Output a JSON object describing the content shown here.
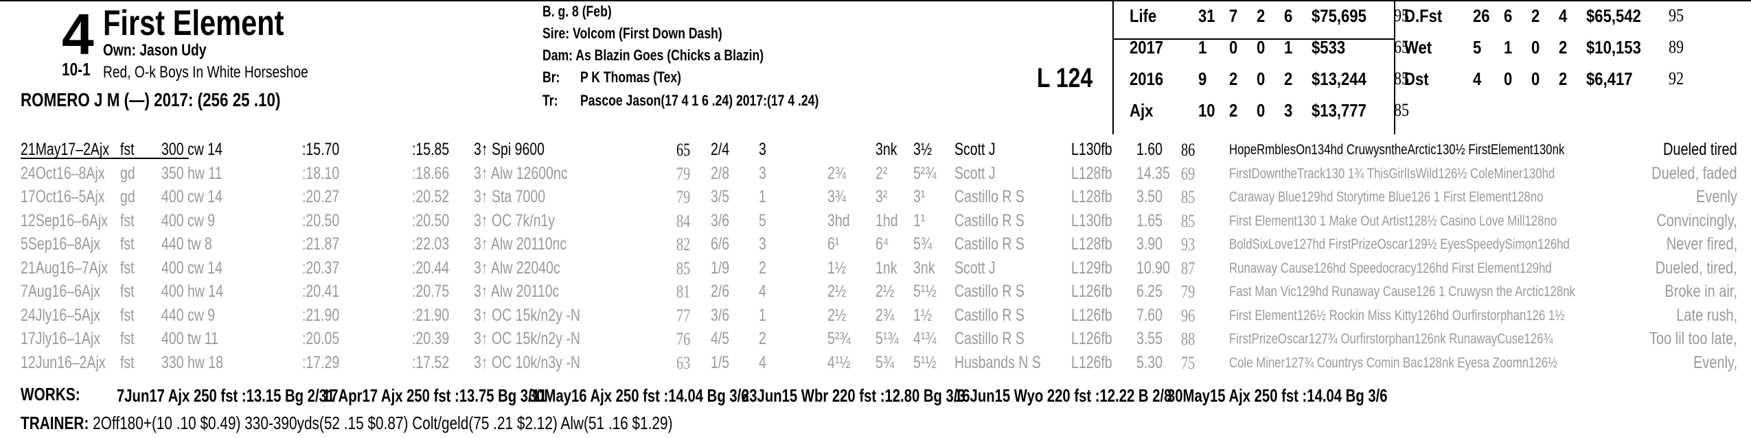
{
  "header": {
    "program_number": "4",
    "horse_name": "First Element",
    "owner": "Own: Jason Udy",
    "odds": "10-1",
    "silks": "Red, O-k Boys In White Horseshoe",
    "jockey": "ROMERO J M (—) 2017: (256 25 .10)",
    "breed": "B. g. 8 (Feb)",
    "sire": "Sire: Volcom (First Down Dash)",
    "dam": "Dam: As Blazin Goes (Chicks a Blazin)",
    "breeder_label": "Br:",
    "breeder": "P K Thomas (Tex)",
    "trainer_label": "Tr:",
    "trainer": "Pascoe Jason(17 4 1 6 .24)  2017:(17 4 .24)",
    "weight": "L 124"
  },
  "stats_left": [
    {
      "label": "Life",
      "starts": "31",
      "w": "7",
      "p": "2",
      "s": "6",
      "earn": "$75,695",
      "speed": "95"
    },
    {
      "label": "2017",
      "starts": "1",
      "w": "0",
      "p": "0",
      "s": "1",
      "earn": "$533",
      "speed": "65"
    },
    {
      "label": "2016",
      "starts": "9",
      "w": "2",
      "p": "0",
      "s": "2",
      "earn": "$13,244",
      "speed": "85"
    },
    {
      "label": "Ajx",
      "starts": "10",
      "w": "2",
      "p": "0",
      "s": "3",
      "earn": "$13,777",
      "speed": "85"
    }
  ],
  "stats_right": [
    {
      "label": "D.Fst",
      "starts": "26",
      "w": "6",
      "p": "2",
      "s": "4",
      "earn": "$65,542",
      "speed": "95"
    },
    {
      "label": "Wet",
      "starts": "5",
      "w": "1",
      "p": "0",
      "s": "2",
      "earn": "$10,153",
      "speed": "89"
    },
    {
      "label": "Dst",
      "starts": "4",
      "w": "0",
      "p": "0",
      "s": "2",
      "earn": "$6,417",
      "speed": "92"
    }
  ],
  "races": [
    {
      "date": "21May17–2Ajx",
      "cond": "fst",
      "dist": "300 cw 14",
      "f1": ":15.70",
      "f2": ":15.85",
      "type": "3↑ Spi 9600",
      "sr": "65",
      "pp": "2/4",
      "st": "3",
      "c1": "",
      "c2": "3nk",
      "fin": "3½",
      "jockey": "Scott J",
      "wt": "L130fb",
      "odds": "1.60",
      "spd": "86",
      "comment": "HopeRmblesOn134hd CruwysntheArctic130½ FirstElement130nk",
      "result": "Dueled tired"
    },
    {
      "date": "24Oct16–8Ajx",
      "cond": "gd",
      "dist": "350 hw 11",
      "f1": ":18.10",
      "f2": ":18.66",
      "type": "3↑ Alw 12600nc",
      "sr": "79",
      "pp": "2/8",
      "st": "3",
      "c1": "2¾",
      "c2": "2²",
      "fin": "5²¾",
      "jockey": "Scott J",
      "wt": "L128fb",
      "odds": "14.35",
      "spd": "69",
      "comment": "FirstDowntheTrack130 1¾ ThisGirlIsWild126½ ColeMiner130hd",
      "result": "Dueled, faded"
    },
    {
      "date": "17Oct16–5Ajx",
      "cond": "gd",
      "dist": "400 cw 14",
      "f1": ":20.27",
      "f2": ":20.52",
      "type": "3↑ Sta 7000",
      "sr": "79",
      "pp": "3/5",
      "st": "1",
      "c1": "3¾",
      "c2": "3²",
      "fin": "3¹",
      "jockey": "Castillo R S",
      "wt": "L128fb",
      "odds": "3.50",
      "spd": "85",
      "comment": "Caraway Blue129hd Storytime Blue126 1 First Element128no",
      "result": "Evenly"
    },
    {
      "date": "12Sep16–6Ajx",
      "cond": "fst",
      "dist": "400 cw 9",
      "f1": ":20.50",
      "f2": ":20.50",
      "type": "3↑ OC 7k/n1y",
      "sr": "84",
      "pp": "3/6",
      "st": "5",
      "c1": "3hd",
      "c2": "1hd",
      "fin": "1¹",
      "jockey": "Castillo R S",
      "wt": "L130fb",
      "odds": "1.65",
      "spd": "85",
      "comment": "First Element130 1 Make Out Artist128½ Casino Love Mill128no",
      "result": "Convincingly,"
    },
    {
      "date": "5Sep16–8Ajx",
      "cond": "fst",
      "dist": "440 tw 8",
      "f1": ":21.87",
      "f2": ":22.03",
      "type": "3↑ Alw 20110nc",
      "sr": "82",
      "pp": "6/6",
      "st": "3",
      "c1": "6¹",
      "c2": "6⁴",
      "fin": "5¾",
      "jockey": "Castillo R S",
      "wt": "L128fb",
      "odds": "3.90",
      "spd": "93",
      "comment": "BoldSixLove127hd FirstPrizeOscar129½ EyesSpeedySimon126hd",
      "result": "Never fired,"
    },
    {
      "date": "21Aug16–7Ajx",
      "cond": "fst",
      "dist": "400 cw 14",
      "f1": ":20.37",
      "f2": ":20.44",
      "type": "3↑ Alw 22040c",
      "sr": "85",
      "pp": "1/9",
      "st": "2",
      "c1": "1½",
      "c2": "1nk",
      "fin": "3nk",
      "jockey": "Scott J",
      "wt": "L129fb",
      "odds": "10.90",
      "spd": "87",
      "comment": "Runaway Cause126hd Speedocracy126hd First Element129hd",
      "result": "Dueled, tired,"
    },
    {
      "date": "7Aug16–6Ajx",
      "cond": "fst",
      "dist": "400 hw 14",
      "f1": ":20.41",
      "f2": ":20.75",
      "type": "3↑ Alw 20110c",
      "sr": "81",
      "pp": "2/6",
      "st": "4",
      "c1": "2½",
      "c2": "2½",
      "fin": "5¹½",
      "jockey": "Castillo R S",
      "wt": "L126fb",
      "odds": "6.25",
      "spd": "79",
      "comment": "Fast Man Vic129hd Runaway Cause126 1 Cruwysn the Arctic128nk",
      "result": "Broke in air,"
    },
    {
      "date": "24Jly16–5Ajx",
      "cond": "fst",
      "dist": "440 cw 9",
      "f1": ":21.90",
      "f2": ":21.90",
      "type": "3↑ OC 15k/n2y -N",
      "sr": "77",
      "pp": "3/6",
      "st": "1",
      "c1": "2½",
      "c2": "2¾",
      "fin": "1½",
      "jockey": "Castillo R S",
      "wt": "L126fb",
      "odds": "7.60",
      "spd": "96",
      "comment": "First Element126½ Rockin Miss Kitty126hd Ourfirstorphan126 1½",
      "result": "Late rush,"
    },
    {
      "date": "17Jly16–1Ajx",
      "cond": "fst",
      "dist": "400 tw 11",
      "f1": ":20.05",
      "f2": ":20.39",
      "type": "3↑ OC 15k/n2y -N",
      "sr": "76",
      "pp": "4/5",
      "st": "2",
      "c1": "5²¾",
      "c2": "5¹¾",
      "fin": "4¹¾",
      "jockey": "Castillo R S",
      "wt": "L126fb",
      "odds": "3.55",
      "spd": "88",
      "comment": "FirstPrizeOscar127¾ Ourfirstorphan126nk RunawayCuse126¾",
      "result": "Too lil too late,"
    },
    {
      "date": "12Jun16–2Ajx",
      "cond": "fst",
      "dist": "330 hw 18",
      "f1": ":17.29",
      "f2": ":17.52",
      "type": "3↑ OC 10k/n3y -N",
      "sr": "63",
      "pp": "1/5",
      "st": "4",
      "c1": "4¹½",
      "c2": "5¾",
      "fin": "5¹½",
      "jockey": "Husbands N S",
      "wt": "L126fb",
      "odds": "5.30",
      "spd": "75",
      "comment": "Cole Miner127¾ Countrys Comin Bac128nk Eyesa Zoomn126½",
      "result": "Evenly,"
    }
  ],
  "works": {
    "label": "WORKS:",
    "items": [
      "7Jun17 Ajx 250 fst :13.15 Bg 2/31",
      "17Apr17 Ajx 250 fst :13.75 Bg 3/11",
      "30May16 Ajx 250 fst :14.04 Bg 3/6",
      "23Jun15 Wbr 220 fst :12.80 Bg 3/3",
      "16Jun15 Wyo 220 fst :12.22 B 2/8",
      "30May15 Ajx 250 fst :14.04 Bg 3/6"
    ]
  },
  "trainer_stats": {
    "label": "TRAINER:",
    "text": "2Off180+(10 .10 $0.49) 330-390yds(52 .15 $0.87) Colt/geld(75 .21 $2.12) Alw(51 .16 $1.29)"
  }
}
